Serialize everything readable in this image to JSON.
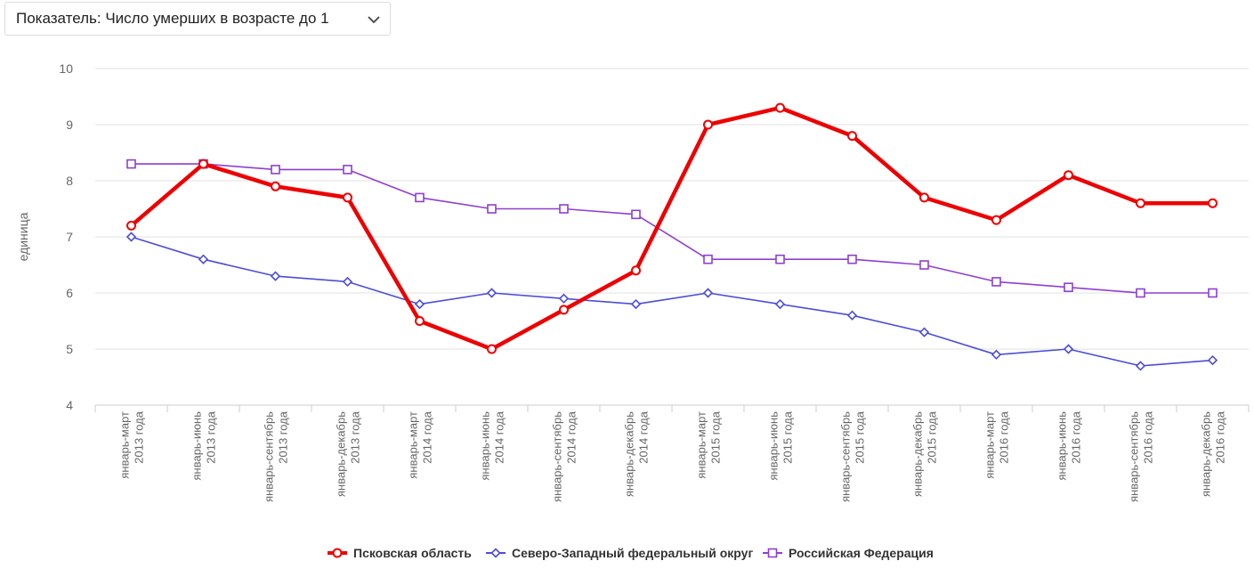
{
  "indicator_select": {
    "label": "Показатель: Число умерших в возрасте до 1"
  },
  "chart_data": {
    "type": "line",
    "ylabel": "единица",
    "xlabel": "",
    "ylim": [
      4,
      10
    ],
    "yticks": [
      "4",
      "5",
      "6",
      "7",
      "8",
      "9",
      "10"
    ],
    "grid": true,
    "legend_position": "bottom",
    "categories": [
      [
        "январь-март",
        "2013 года"
      ],
      [
        "январь-июнь",
        "2013 года"
      ],
      [
        "январь-сентябрь",
        "2013 года"
      ],
      [
        "январь-декабрь",
        "2013 года"
      ],
      [
        "январь-март",
        "2014 года"
      ],
      [
        "январь-июнь",
        "2014 года"
      ],
      [
        "январь-сентябрь",
        "2014 года"
      ],
      [
        "январь-декабрь",
        "2014 года"
      ],
      [
        "январь-март",
        "2015 года"
      ],
      [
        "январь-июнь",
        "2015 года"
      ],
      [
        "январь-сентябрь",
        "2015 года"
      ],
      [
        "январь-декабрь",
        "2015 года"
      ],
      [
        "январь-март",
        "2016 года"
      ],
      [
        "январь-июнь",
        "2016 года"
      ],
      [
        "январь-сентябрь",
        "2016 года"
      ],
      [
        "январь-декабрь",
        "2016 года"
      ]
    ],
    "series": [
      {
        "name": "Псковская область",
        "color": "#ee0000",
        "marker": "circle",
        "values": [
          7.2,
          8.3,
          7.9,
          7.7,
          5.5,
          5.0,
          5.7,
          6.4,
          9.0,
          9.3,
          8.8,
          7.7,
          7.3,
          8.1,
          7.6,
          7.6
        ]
      },
      {
        "name": "Северо-Западный федеральный округ",
        "color": "#4d4dd6",
        "marker": "diamond",
        "values": [
          7.0,
          6.6,
          6.3,
          6.2,
          5.8,
          6.0,
          5.9,
          5.8,
          6.0,
          5.8,
          5.6,
          5.3,
          4.9,
          5.0,
          4.7,
          4.8
        ]
      },
      {
        "name": "Российская Федерация",
        "color": "#8e3fd0",
        "marker": "square",
        "values": [
          8.3,
          8.3,
          8.2,
          8.2,
          7.7,
          7.5,
          7.5,
          7.4,
          6.6,
          6.6,
          6.6,
          6.5,
          6.2,
          6.1,
          6.0,
          6.0
        ]
      }
    ]
  }
}
